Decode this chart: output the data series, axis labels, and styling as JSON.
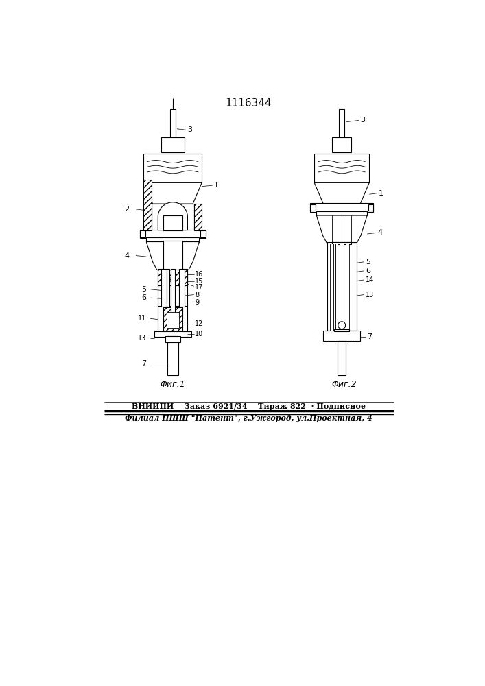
{
  "title": "1116344",
  "fig1_label": "Φиг.1",
  "fig2_label": "Φиг.2",
  "footer_line1": "ВНИИПИ    Заказ 6921/34    Тираж 822  · Подписное",
  "footer_line2": "Филиал ПШШ \"Патент\", г.Ужгород, ул.Проектная, 4",
  "bg_color": "#ffffff",
  "fig_width": 7.07,
  "fig_height": 10.0,
  "dpi": 100
}
